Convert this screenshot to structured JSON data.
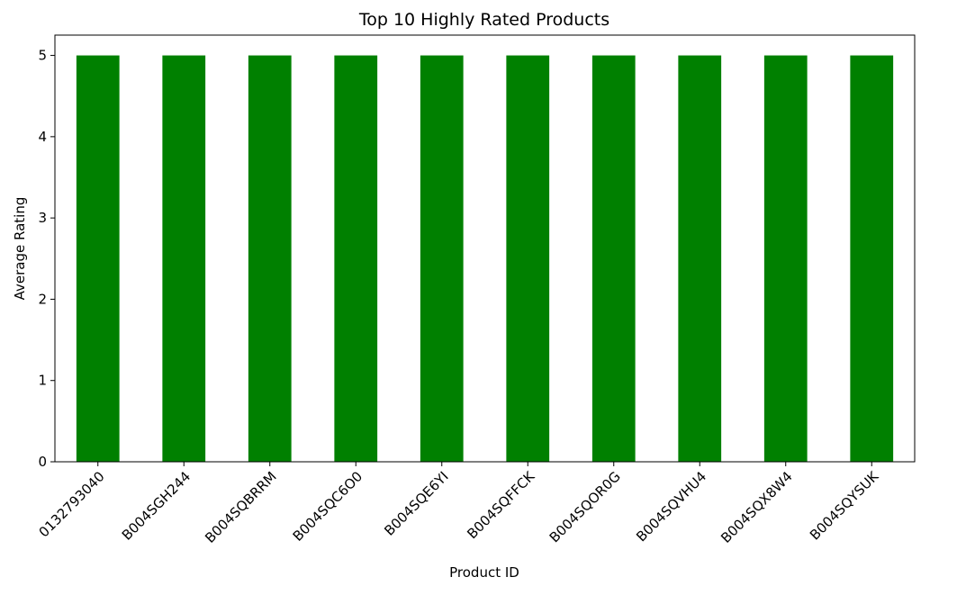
{
  "chart_data": {
    "type": "bar",
    "title": "Top 10 Highly Rated Products",
    "xlabel": "Product ID",
    "ylabel": "Average Rating",
    "categories": [
      "0132793040",
      "B004SGH244",
      "B004SQBRRM",
      "B004SQC6O0",
      "B004SQE6YI",
      "B004SQFFCK",
      "B004SQOR0G",
      "B004SQVHU4",
      "B004SQX8W4",
      "B004SQYSUK"
    ],
    "values": [
      5,
      5,
      5,
      5,
      5,
      5,
      5,
      5,
      5,
      5
    ],
    "ylim": [
      0,
      5.25
    ],
    "yticks": [
      0,
      1,
      2,
      3,
      4,
      5
    ],
    "bar_color": "#008000",
    "grid": false,
    "legend": "none"
  }
}
